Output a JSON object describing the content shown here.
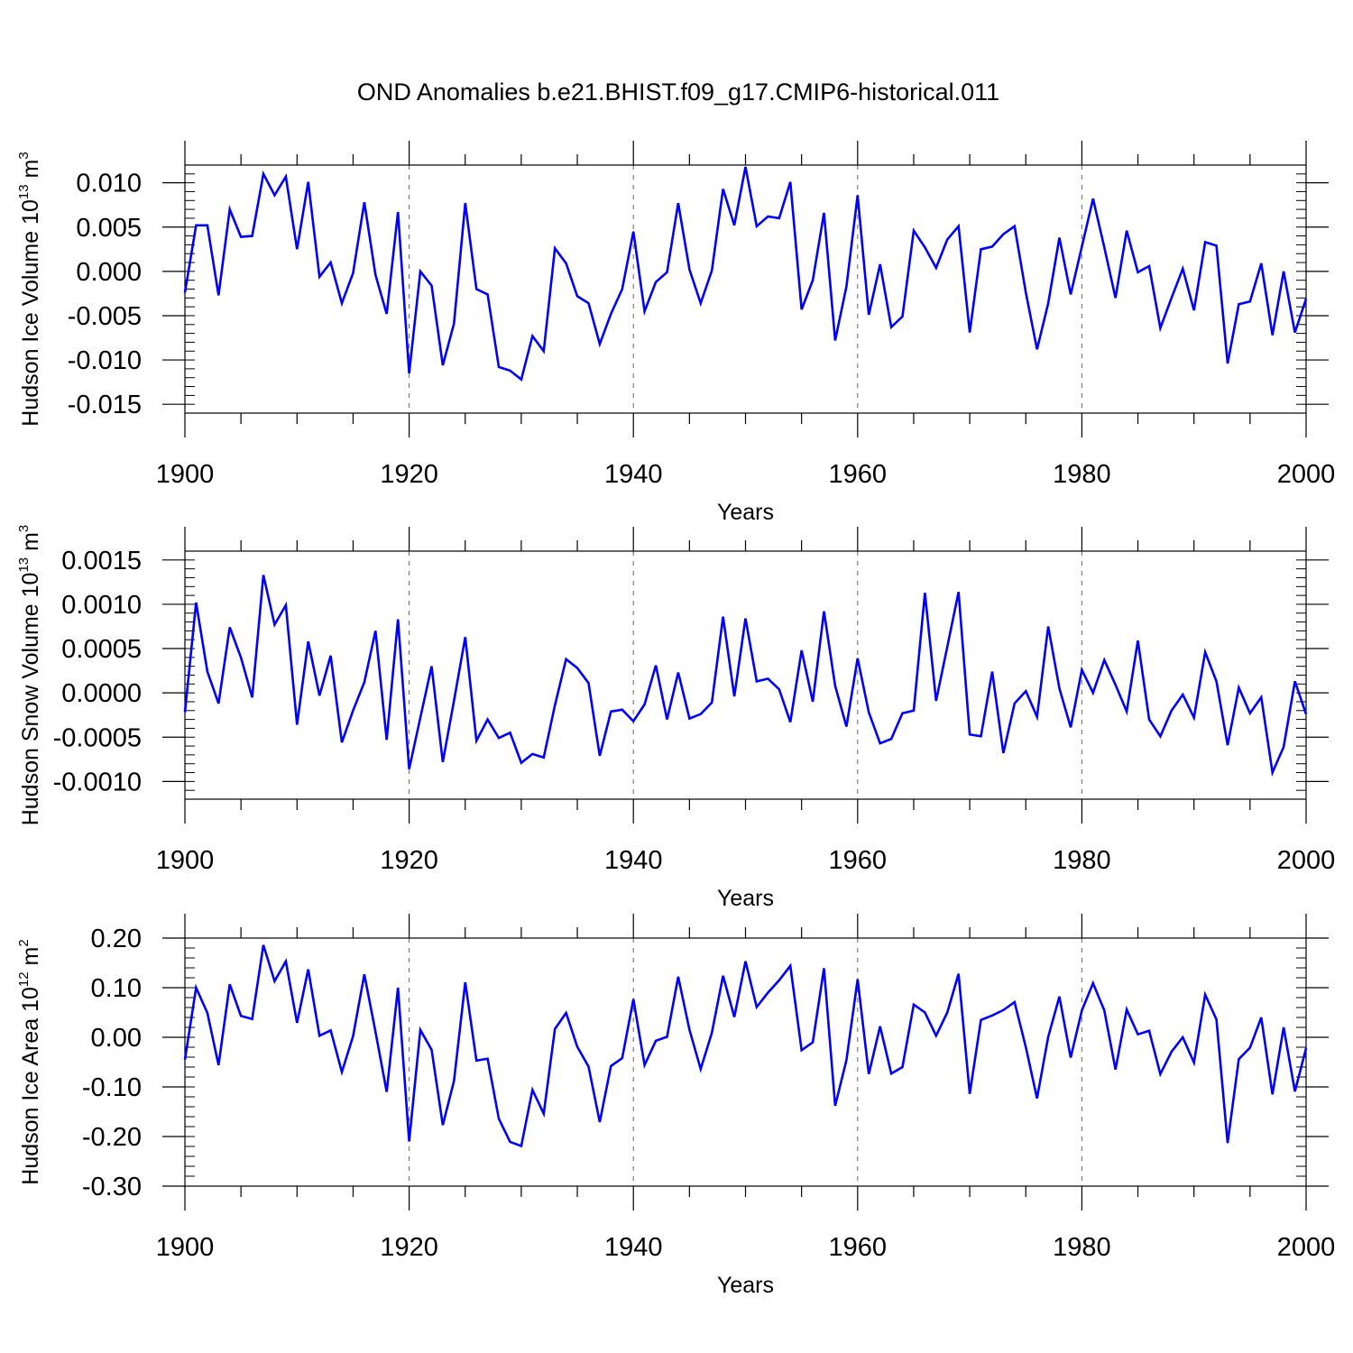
{
  "figure_title": "OND Anomalies b.e21.BHIST.f09_g17.CMIP6-historical.011",
  "line_color": "#0000ff",
  "chart_data": [
    {
      "type": "line",
      "id": "ice-volume",
      "ylabel_main": "Hudson Ice Volume 10",
      "ylabel_exponent": "13",
      "ylabel_unit": " m",
      "ylabel_unit_exponent": "3",
      "xlabel": "Years",
      "xlim": [
        1900,
        2000
      ],
      "ylim": [
        -0.016,
        0.012
      ],
      "x_ticks": [
        1900,
        1920,
        1940,
        1960,
        1980,
        2000
      ],
      "x_tick_labels": [
        "1900",
        "1920",
        "1940",
        "1960",
        "1980",
        "2000"
      ],
      "y_ticks": [
        0.01,
        0.005,
        0.0,
        -0.005,
        -0.01,
        -0.015
      ],
      "y_tick_labels": [
        "0.010",
        "0.005",
        "0.000",
        "-0.005",
        "-0.010",
        "-0.015"
      ],
      "y_minor_step": 0.001,
      "grid": "vertical dashed at 1920, 1940, 1960, 1980",
      "x": [
        1900,
        1901,
        1902,
        1903,
        1904,
        1905,
        1906,
        1907,
        1908,
        1909,
        1910,
        1911,
        1912,
        1913,
        1914,
        1915,
        1916,
        1917,
        1918,
        1919,
        1920,
        1921,
        1922,
        1923,
        1924,
        1925,
        1926,
        1927,
        1928,
        1929,
        1930,
        1931,
        1932,
        1933,
        1934,
        1935,
        1936,
        1937,
        1938,
        1939,
        1940,
        1941,
        1942,
        1943,
        1944,
        1945,
        1946,
        1947,
        1948,
        1949,
        1950,
        1951,
        1952,
        1953,
        1954,
        1955,
        1956,
        1957,
        1958,
        1959,
        1960,
        1961,
        1962,
        1963,
        1964,
        1965,
        1966,
        1967,
        1968,
        1969,
        1970,
        1971,
        1972,
        1973,
        1974,
        1975,
        1976,
        1977,
        1978,
        1979,
        1980,
        1981,
        1982,
        1983,
        1984,
        1985,
        1986,
        1987,
        1988,
        1989,
        1990,
        1991,
        1992,
        1993,
        1994,
        1995,
        1996,
        1997,
        1998,
        1999,
        2000
      ],
      "values": [
        -0.0024,
        0.0052,
        0.0052,
        -0.0027,
        0.007,
        0.0039,
        0.004,
        0.011,
        0.0086,
        0.0107,
        0.0025,
        0.0101,
        -0.0006,
        0.001,
        -0.0036,
        -0.0002,
        0.0078,
        -0.0004,
        -0.0048,
        0.0067,
        -0.0115,
        0.0,
        -0.0016,
        -0.0106,
        -0.0059,
        0.0077,
        -0.002,
        -0.0026,
        -0.0108,
        -0.0112,
        -0.0122,
        -0.0073,
        -0.009,
        0.0026,
        0.0009,
        -0.0028,
        -0.0036,
        -0.0082,
        -0.0048,
        -0.002,
        0.0045,
        -0.0045,
        -0.0012,
        -0.0001,
        0.0077,
        0.0002,
        -0.0036,
        0.0001,
        0.0093,
        0.0052,
        0.0118,
        0.0051,
        0.0062,
        0.006,
        0.0101,
        -0.0043,
        -0.001,
        0.0066,
        -0.0078,
        -0.0017,
        0.0086,
        -0.0049,
        0.0008,
        -0.0063,
        -0.0051,
        0.0046,
        0.0027,
        0.0004,
        0.0036,
        0.0051,
        -0.0069,
        0.0025,
        0.0028,
        0.0042,
        0.0051,
        -0.0024,
        -0.0088,
        -0.0036,
        0.0038,
        -0.0026,
        0.0028,
        0.0082,
        0.0027,
        -0.003,
        0.0046,
        -0.0001,
        0.0006,
        -0.0064,
        -0.003,
        0.0003,
        -0.0044,
        0.0033,
        0.0029,
        -0.0104,
        -0.0037,
        -0.0034,
        0.0009,
        -0.0072,
        0.0,
        -0.0069,
        -0.0031
      ]
    },
    {
      "type": "line",
      "id": "snow-volume",
      "ylabel_main": "Hudson Snow Volume 10",
      "ylabel_exponent": "13",
      "ylabel_unit": " m",
      "ylabel_unit_exponent": "3",
      "xlabel": "Years",
      "xlim": [
        1900,
        2000
      ],
      "ylim": [
        -0.0012,
        0.0016
      ],
      "x_ticks": [
        1900,
        1920,
        1940,
        1960,
        1980,
        2000
      ],
      "x_tick_labels": [
        "1900",
        "1920",
        "1940",
        "1960",
        "1980",
        "2000"
      ],
      "y_ticks": [
        0.0015,
        0.001,
        0.0005,
        0.0,
        -0.0005,
        -0.001
      ],
      "y_tick_labels": [
        "0.0015",
        "0.0010",
        "0.0005",
        "0.0000",
        "-0.0005",
        "-0.0010"
      ],
      "y_minor_step": 0.0001,
      "grid": "vertical dashed at 1920, 1940, 1960, 1980",
      "x": [
        1900,
        1901,
        1902,
        1903,
        1904,
        1905,
        1906,
        1907,
        1908,
        1909,
        1910,
        1911,
        1912,
        1913,
        1914,
        1915,
        1916,
        1917,
        1918,
        1919,
        1920,
        1921,
        1922,
        1923,
        1924,
        1925,
        1926,
        1927,
        1928,
        1929,
        1930,
        1931,
        1932,
        1933,
        1934,
        1935,
        1936,
        1937,
        1938,
        1939,
        1940,
        1941,
        1942,
        1943,
        1944,
        1945,
        1946,
        1947,
        1948,
        1949,
        1950,
        1951,
        1952,
        1953,
        1954,
        1955,
        1956,
        1957,
        1958,
        1959,
        1960,
        1961,
        1962,
        1963,
        1964,
        1965,
        1966,
        1967,
        1968,
        1969,
        1970,
        1971,
        1972,
        1973,
        1974,
        1975,
        1976,
        1977,
        1978,
        1979,
        1980,
        1981,
        1982,
        1983,
        1984,
        1985,
        1986,
        1987,
        1988,
        1989,
        1990,
        1991,
        1992,
        1993,
        1994,
        1995,
        1996,
        1997,
        1998,
        1999,
        2000
      ],
      "values": [
        -0.00022,
        0.00102,
        0.00024,
        -0.00012,
        0.00074,
        0.0004,
        -5e-05,
        0.00133,
        0.00077,
        0.00099,
        -0.00036,
        0.00058,
        -3e-05,
        0.00042,
        -0.00056,
        -0.0002,
        0.00012,
        0.0007,
        -0.00053,
        0.00083,
        -0.00086,
        -0.00028,
        0.0003,
        -0.00078,
        -9e-05,
        0.00063,
        -0.00054,
        -0.0003,
        -0.00051,
        -0.00045,
        -0.00079,
        -0.00069,
        -0.00073,
        -0.00014,
        0.00038,
        0.00028,
        0.00011,
        -0.00071,
        -0.00021,
        -0.00019,
        -0.00032,
        -0.00013,
        0.00031,
        -0.0003,
        0.00023,
        -0.00029,
        -0.00024,
        -0.00011,
        0.00086,
        -4e-05,
        0.00084,
        0.00013,
        0.00016,
        4e-05,
        -0.00033,
        0.00048,
        -0.0001,
        0.00092,
        8e-05,
        -0.00038,
        0.00039,
        -0.00022,
        -0.00057,
        -0.00052,
        -0.00023,
        -0.0002,
        0.00113,
        -9e-05,
        0.00052,
        0.00114,
        -0.00047,
        -0.00049,
        0.00024,
        -0.00068,
        -0.00012,
        2e-05,
        -0.00027,
        0.00075,
        5e-05,
        -0.00039,
        0.00026,
        0.0,
        0.00037,
        9e-05,
        -0.00021,
        0.00059,
        -0.0003,
        -0.00049,
        -0.0002,
        -2e-05,
        -0.00028,
        0.00046,
        0.00013,
        -0.00059,
        6e-05,
        -0.00023,
        -5e-05,
        -0.0009,
        -0.00061,
        0.00013,
        -0.00024
      ]
    },
    {
      "type": "line",
      "id": "ice-area",
      "ylabel_main": "Hudson Ice Area 10",
      "ylabel_exponent": "12",
      "ylabel_unit": " m",
      "ylabel_unit_exponent": "2",
      "xlabel": "Years",
      "xlim": [
        1900,
        2000
      ],
      "ylim": [
        -0.3,
        0.2
      ],
      "x_ticks": [
        1900,
        1920,
        1940,
        1960,
        1980,
        2000
      ],
      "x_tick_labels": [
        "1900",
        "1920",
        "1940",
        "1960",
        "1980",
        "2000"
      ],
      "y_ticks": [
        0.2,
        0.1,
        0.0,
        -0.1,
        -0.2,
        -0.3
      ],
      "y_tick_labels": [
        "0.20",
        "0.10",
        "0.00",
        "-0.10",
        "-0.20",
        "-0.30"
      ],
      "y_minor_step": 0.02,
      "grid": "vertical dashed at 1920, 1940, 1960, 1980",
      "x": [
        1900,
        1901,
        1902,
        1903,
        1904,
        1905,
        1906,
        1907,
        1908,
        1909,
        1910,
        1911,
        1912,
        1913,
        1914,
        1915,
        1916,
        1917,
        1918,
        1919,
        1920,
        1921,
        1922,
        1923,
        1924,
        1925,
        1926,
        1927,
        1928,
        1929,
        1930,
        1931,
        1932,
        1933,
        1934,
        1935,
        1936,
        1937,
        1938,
        1939,
        1940,
        1941,
        1942,
        1943,
        1944,
        1945,
        1946,
        1947,
        1948,
        1949,
        1950,
        1951,
        1952,
        1953,
        1954,
        1955,
        1956,
        1957,
        1958,
        1959,
        1960,
        1961,
        1962,
        1963,
        1964,
        1965,
        1966,
        1967,
        1968,
        1969,
        1970,
        1971,
        1972,
        1973,
        1974,
        1975,
        1976,
        1977,
        1978,
        1979,
        1980,
        1981,
        1982,
        1983,
        1984,
        1985,
        1986,
        1987,
        1988,
        1989,
        1990,
        1991,
        1992,
        1993,
        1994,
        1995,
        1996,
        1997,
        1998,
        1999,
        2000
      ],
      "values": [
        -0.045,
        0.1,
        0.049,
        -0.056,
        0.107,
        0.043,
        0.037,
        0.186,
        0.113,
        0.153,
        0.029,
        0.137,
        0.003,
        0.014,
        -0.07,
        0.002,
        0.127,
        0.011,
        -0.11,
        0.1,
        -0.21,
        0.015,
        -0.025,
        -0.177,
        -0.088,
        0.111,
        -0.047,
        -0.043,
        -0.164,
        -0.211,
        -0.219,
        -0.106,
        -0.154,
        0.017,
        0.049,
        -0.019,
        -0.059,
        -0.171,
        -0.058,
        -0.042,
        0.077,
        -0.056,
        -0.007,
        0.001,
        0.122,
        0.015,
        -0.064,
        0.009,
        0.124,
        0.041,
        0.153,
        0.061,
        0.09,
        0.115,
        0.144,
        -0.026,
        -0.01,
        0.139,
        -0.138,
        -0.046,
        0.117,
        -0.074,
        0.022,
        -0.073,
        -0.06,
        0.066,
        0.05,
        0.003,
        0.05,
        0.128,
        -0.114,
        0.035,
        0.044,
        0.055,
        0.071,
        -0.02,
        -0.123,
        0.001,
        0.082,
        -0.041,
        0.054,
        0.109,
        0.054,
        -0.065,
        0.056,
        0.006,
        0.013,
        -0.074,
        -0.029,
        0.0,
        -0.051,
        0.086,
        0.036,
        -0.213,
        -0.044,
        -0.021,
        0.04,
        -0.115,
        0.02,
        -0.109,
        -0.022
      ]
    }
  ]
}
